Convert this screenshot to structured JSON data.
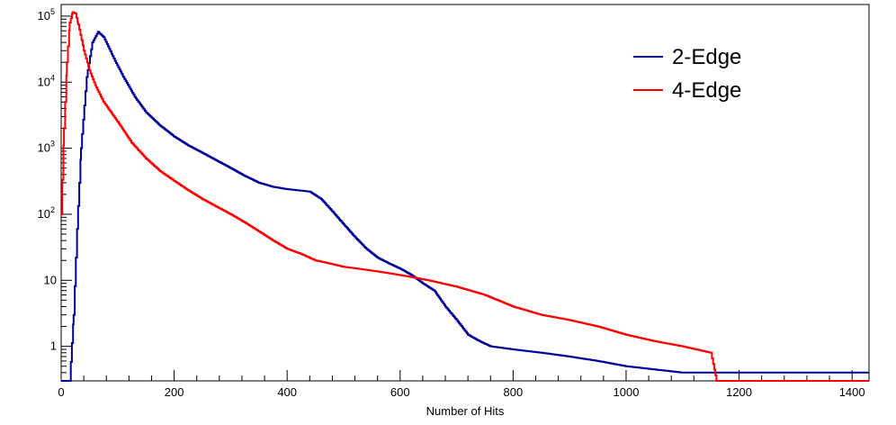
{
  "chart_data": {
    "type": "line",
    "xlabel": "Number of Hits",
    "ylabel": "",
    "xlim": [
      0,
      1430
    ],
    "ylim": [
      0.3,
      150000
    ],
    "y_scale": "log",
    "x_ticks": [
      0,
      200,
      400,
      600,
      800,
      1000,
      1200,
      1400
    ],
    "y_ticks": [
      {
        "value": 1,
        "label": "1"
      },
      {
        "value": 10,
        "label": "10"
      },
      {
        "value": 100,
        "label": "10",
        "exp": "2"
      },
      {
        "value": 1000,
        "label": "10",
        "exp": "3"
      },
      {
        "value": 10000,
        "label": "10",
        "exp": "4"
      },
      {
        "value": 100000,
        "label": "10",
        "exp": "5"
      }
    ],
    "grid": false,
    "legend_position": "top-right",
    "series": [
      {
        "name": "2-Edge",
        "color": "#000099",
        "points": [
          [
            0,
            0.3
          ],
          [
            15,
            0.3
          ],
          [
            22,
            3
          ],
          [
            28,
            60
          ],
          [
            35,
            1000
          ],
          [
            45,
            12000
          ],
          [
            55,
            40000
          ],
          [
            65,
            58000
          ],
          [
            75,
            48000
          ],
          [
            85,
            32000
          ],
          [
            95,
            21000
          ],
          [
            110,
            12000
          ],
          [
            130,
            6000
          ],
          [
            150,
            3500
          ],
          [
            175,
            2200
          ],
          [
            200,
            1500
          ],
          [
            225,
            1100
          ],
          [
            250,
            850
          ],
          [
            275,
            650
          ],
          [
            300,
            500
          ],
          [
            325,
            380
          ],
          [
            350,
            300
          ],
          [
            375,
            260
          ],
          [
            400,
            240
          ],
          [
            420,
            230
          ],
          [
            440,
            220
          ],
          [
            460,
            170
          ],
          [
            480,
            110
          ],
          [
            500,
            70
          ],
          [
            520,
            45
          ],
          [
            540,
            30
          ],
          [
            560,
            22
          ],
          [
            580,
            18
          ],
          [
            600,
            15
          ],
          [
            620,
            12
          ],
          [
            640,
            9
          ],
          [
            660,
            7
          ],
          [
            680,
            4
          ],
          [
            700,
            2.5
          ],
          [
            720,
            1.5
          ],
          [
            740,
            1.2
          ],
          [
            760,
            1.0
          ],
          [
            800,
            0.9
          ],
          [
            850,
            0.8
          ],
          [
            900,
            0.7
          ],
          [
            950,
            0.6
          ],
          [
            1000,
            0.5
          ],
          [
            1100,
            0.4
          ],
          [
            1430,
            0.4
          ]
        ]
      },
      {
        "name": "4-Edge",
        "color": "#ff0000",
        "points": [
          [
            0,
            100
          ],
          [
            5,
            2000
          ],
          [
            10,
            20000
          ],
          [
            15,
            80000
          ],
          [
            20,
            115000
          ],
          [
            25,
            110000
          ],
          [
            30,
            75000
          ],
          [
            40,
            30000
          ],
          [
            50,
            15000
          ],
          [
            60,
            9000
          ],
          [
            75,
            5000
          ],
          [
            100,
            2500
          ],
          [
            125,
            1200
          ],
          [
            150,
            700
          ],
          [
            175,
            450
          ],
          [
            200,
            320
          ],
          [
            225,
            230
          ],
          [
            250,
            170
          ],
          [
            275,
            130
          ],
          [
            300,
            100
          ],
          [
            325,
            75
          ],
          [
            350,
            55
          ],
          [
            375,
            40
          ],
          [
            400,
            30
          ],
          [
            425,
            25
          ],
          [
            450,
            20
          ],
          [
            475,
            18
          ],
          [
            500,
            16
          ],
          [
            525,
            15
          ],
          [
            550,
            14
          ],
          [
            575,
            13
          ],
          [
            600,
            12
          ],
          [
            625,
            11
          ],
          [
            650,
            10
          ],
          [
            700,
            8
          ],
          [
            750,
            6
          ],
          [
            800,
            4
          ],
          [
            850,
            3
          ],
          [
            900,
            2.5
          ],
          [
            950,
            2
          ],
          [
            1000,
            1.5
          ],
          [
            1050,
            1.2
          ],
          [
            1100,
            1.0
          ],
          [
            1150,
            0.8
          ],
          [
            1160,
            0.3
          ],
          [
            1430,
            0.3
          ]
        ]
      }
    ]
  }
}
